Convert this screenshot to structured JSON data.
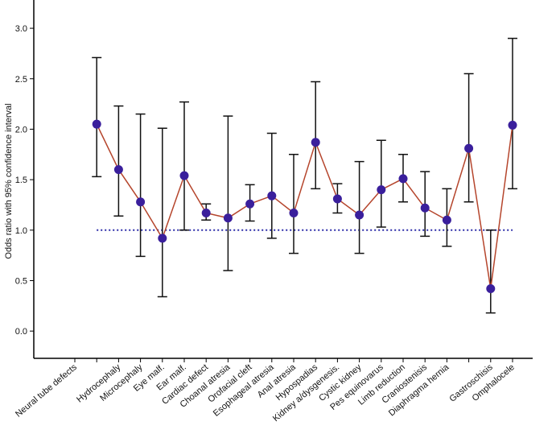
{
  "chart_data": {
    "type": "errorline",
    "y_label": "Odds ratio with 95% confidence interval",
    "categories": [
      "Neural tube defects",
      null,
      "Hydrocephaly",
      "Microcephaly",
      "Eye malf.",
      "Ear malf.",
      "Cardiac defect",
      "Choanal atresia",
      "Orofacial cleft",
      "Esophageal atresia",
      "Anal atresia",
      "Hypospadias",
      "Kidney a/dysgenesis.",
      "Cystic kidney",
      "Pes equinovarus",
      "Limb reduction",
      "Craniostenisis",
      "Diaphragma hernia",
      null,
      "Gastroschisis",
      "Omphalocele"
    ],
    "values": [
      null,
      2.05,
      1.6,
      1.28,
      0.92,
      1.54,
      1.17,
      1.12,
      1.26,
      1.34,
      1.17,
      1.87,
      1.31,
      1.15,
      1.4,
      1.51,
      1.22,
      1.1,
      1.81,
      0.42,
      2.04
    ],
    "lower": [
      null,
      1.53,
      1.14,
      0.74,
      0.34,
      1.0,
      1.1,
      0.6,
      1.09,
      0.92,
      0.77,
      1.41,
      1.17,
      0.77,
      1.03,
      1.28,
      0.94,
      0.84,
      1.28,
      0.18,
      1.41
    ],
    "upper": [
      null,
      2.71,
      2.23,
      2.15,
      2.01,
      2.27,
      1.26,
      2.13,
      1.45,
      1.96,
      1.75,
      2.47,
      1.46,
      1.68,
      1.89,
      1.75,
      1.58,
      1.41,
      2.55,
      1.0,
      2.9
    ],
    "line_color": "#b5452c",
    "marker_color": "#3a1f9c",
    "reference_line": 1,
    "reference_color": "#2a2aa8",
    "ylim": [
      -0.27,
      3.28
    ],
    "yticks": [
      {
        "value": 0,
        "label": "0.0"
      },
      0.5,
      {
        "value": 1,
        "label": "1.0"
      },
      1.5,
      {
        "value": 2,
        "label": "2.0"
      },
      2.5,
      {
        "value": 3,
        "label": "3.0"
      }
    ]
  }
}
